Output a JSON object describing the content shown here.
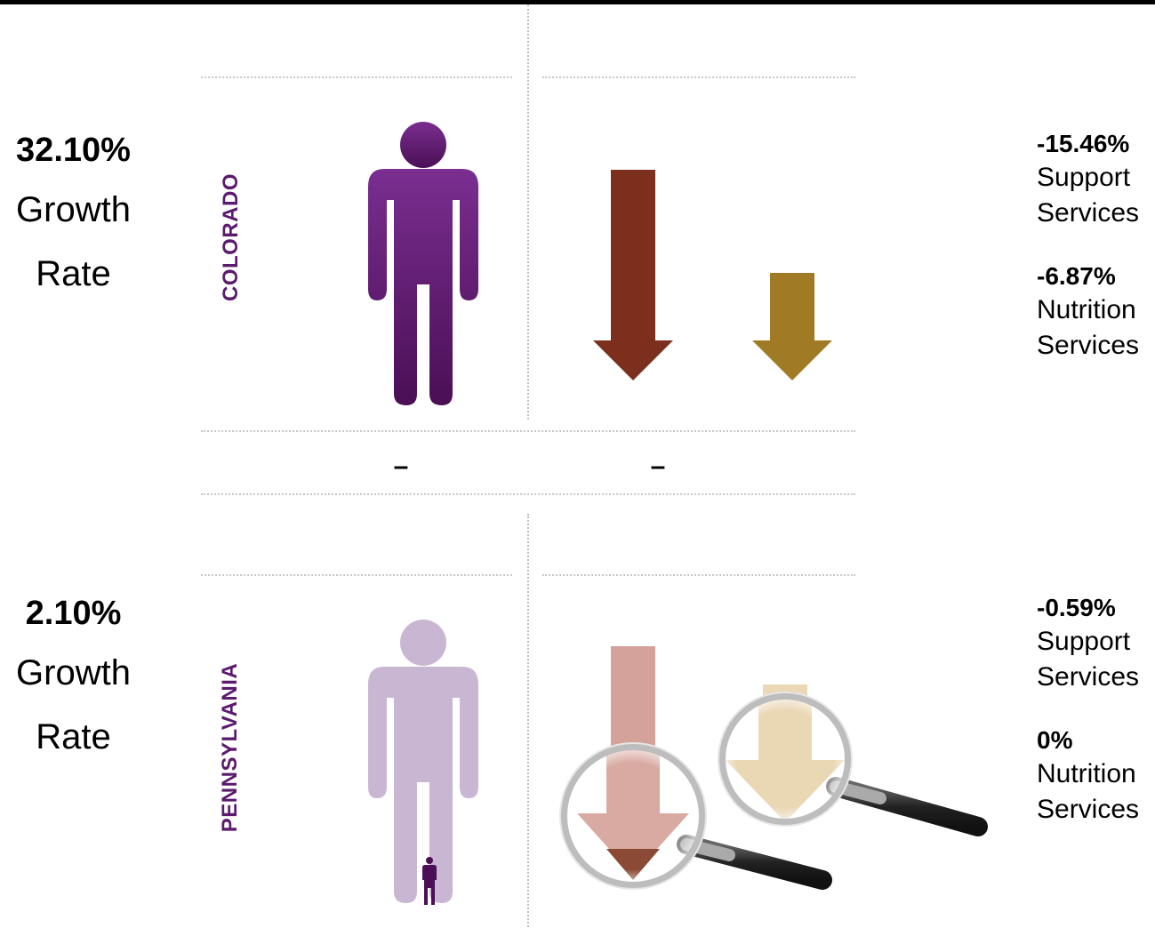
{
  "colorado": {
    "state": "COLORADO",
    "growth_value": "32.10%",
    "growth_word1": "Growth",
    "growth_word2": "Rate",
    "support_value": "-15.46%",
    "support_label1": "Support",
    "support_label2": "Services",
    "nutrition_value": "-6.87%",
    "nutrition_label1": "Nutrition",
    "nutrition_label2": "Services"
  },
  "pennsylvania": {
    "state": "PENNSYLVANIA",
    "growth_value": "2.10%",
    "growth_word1": "Growth",
    "growth_word2": "Rate",
    "support_value": "-0.59%",
    "support_label1": "Support",
    "support_label2": "Services",
    "nutrition_value": "0%",
    "nutrition_label1": "Nutrition",
    "nutrition_label2": "Services"
  },
  "separator": {
    "left_dash": "–",
    "right_dash": "–"
  },
  "colors": {
    "person_purple": "#6b2580",
    "person_purple_light": "#c9b6d3",
    "support_arrow": "#7b2f1c",
    "nutrition_arrow": "#a07a25",
    "state_label": "#5b1a6e"
  },
  "icons": [
    "person-icon",
    "down-arrow-icon",
    "magnifying-glass-icon"
  ]
}
